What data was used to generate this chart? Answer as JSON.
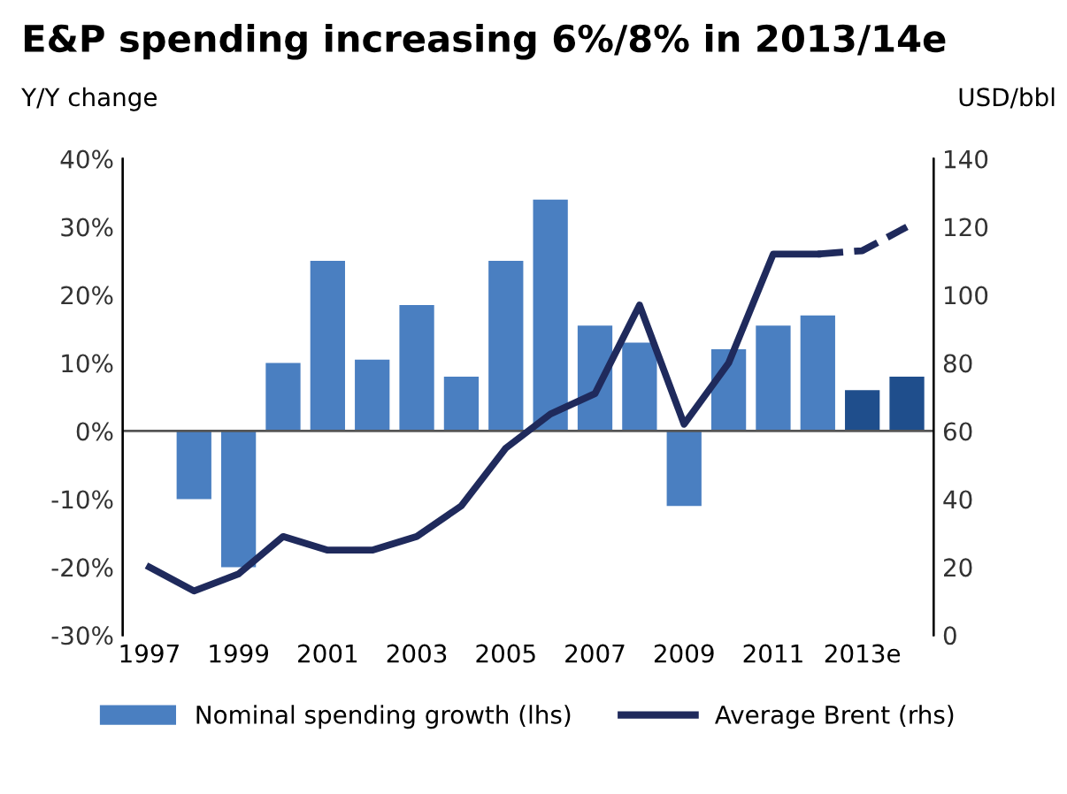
{
  "chart_data": {
    "type": "bar",
    "title": "E&P spending increasing 6%/8% in 2013/14e",
    "ylabel": "Y/Y change",
    "y2label": "USD/bbl",
    "categories": [
      "1997",
      null,
      "1999",
      null,
      "2001",
      null,
      "2003",
      null,
      "2005",
      null,
      "2007",
      null,
      "2009",
      null,
      "2011",
      null,
      "2013e",
      null
    ],
    "series": [
      {
        "name": "Nominal spending growth (lhs)",
        "color": "#4a7fc1",
        "colors": [
          "#4a7fc1",
          "#4a7fc1",
          "#4a7fc1",
          "#4a7fc1",
          "#4a7fc1",
          "#4a7fc1",
          "#4a7fc1",
          "#4a7fc1",
          "#4a7fc1",
          "#4a7fc1",
          "#4a7fc1",
          "#4a7fc1",
          "#4a7fc1",
          "#4a7fc1",
          "#4a7fc1",
          "#4a7fc1",
          "#1f4e8c",
          "#1f4e8c"
        ],
        "values": [
          null,
          -10,
          -20,
          10,
          25,
          10.5,
          18.5,
          8,
          25,
          34,
          15.5,
          13,
          -11,
          12,
          15.5,
          17,
          6,
          8
        ]
      },
      {
        "name": "Average Brent (rhs)",
        "type": "line",
        "axis": "y2",
        "color": "#1f2a5c",
        "line_style": "solid",
        "values": [
          20,
          13,
          18,
          29,
          25,
          25,
          29,
          38,
          55,
          65,
          71,
          97,
          62,
          80,
          112,
          112,
          null,
          null
        ]
      },
      {
        "type": "line",
        "axis": "y2",
        "color": "#1f2a5c",
        "line_style": "dashed",
        "values": [
          null,
          null,
          null,
          null,
          null,
          null,
          null,
          null,
          null,
          null,
          null,
          null,
          null,
          null,
          null,
          112,
          113,
          120
        ]
      }
    ],
    "ylim": [
      -30,
      40
    ],
    "yticks": [
      {
        "value": -30,
        "label": "-30%"
      },
      {
        "value": -20,
        "label": "-20%"
      },
      {
        "value": -10,
        "label": "-10%"
      },
      {
        "value": 0,
        "label": "0%"
      },
      {
        "value": 10,
        "label": "10%"
      },
      {
        "value": 20,
        "label": "20%"
      },
      {
        "value": 30,
        "label": "30%"
      },
      {
        "value": 40,
        "label": "40%"
      }
    ],
    "y2lim": [
      0,
      140
    ],
    "y2ticks": [
      0,
      20,
      40,
      60,
      80,
      100,
      120,
      140
    ],
    "legend": "bottom"
  }
}
